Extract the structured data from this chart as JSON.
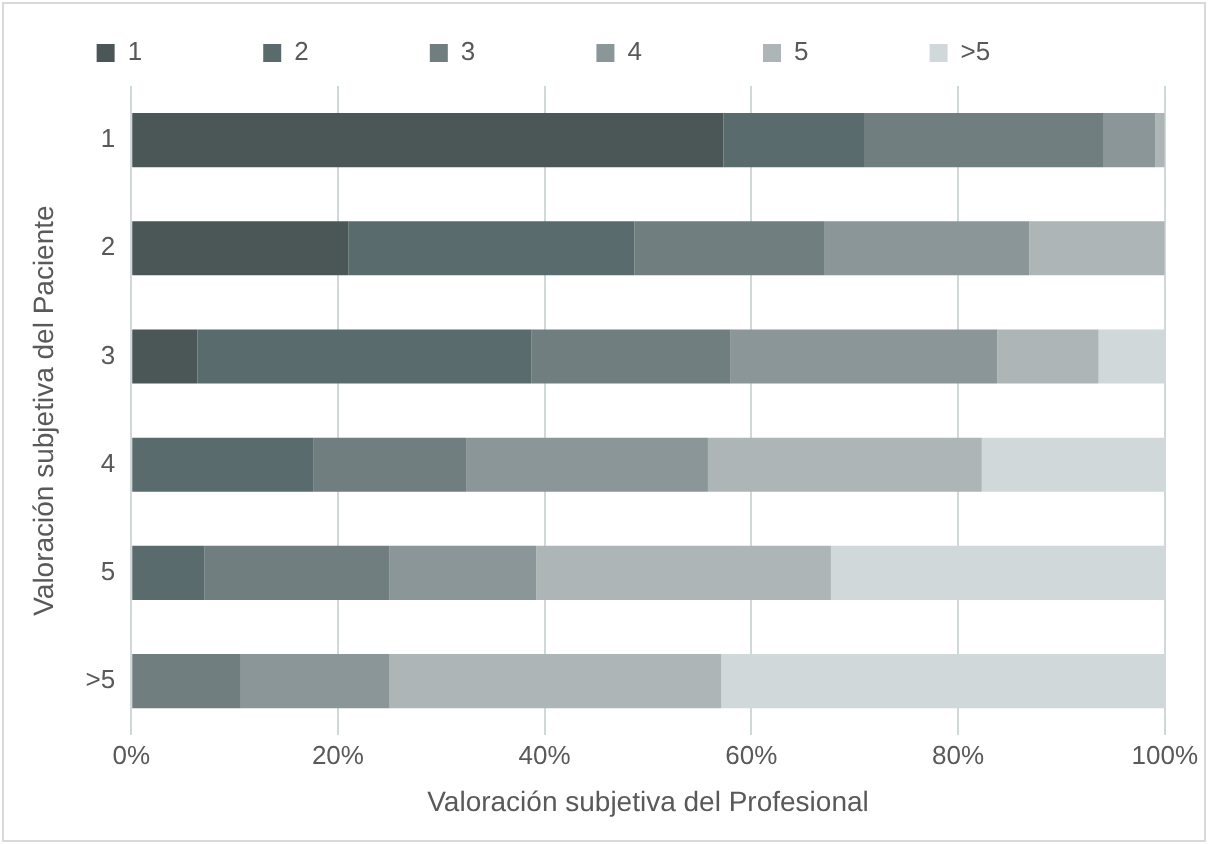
{
  "chart_data": {
    "type": "bar",
    "orientation": "horizontal",
    "stacked": true,
    "xlabel": "Valoración subjetiva del Profesional",
    "ylabel": "Valoración subjetiva del Paciente",
    "categories": [
      "1",
      "2",
      "3",
      "4",
      "5",
      ">5"
    ],
    "series": [
      {
        "name": "1",
        "color": "#4b5757",
        "values": [
          57.3,
          21.0,
          6.4,
          0,
          0,
          0
        ]
      },
      {
        "name": "2",
        "color": "#5a6b6d",
        "values": [
          13.6,
          27.7,
          32.3,
          17.6,
          7.1,
          0
        ]
      },
      {
        "name": "3",
        "color": "#717e80",
        "values": [
          23.2,
          18.4,
          19.3,
          14.8,
          17.9,
          10.6
        ]
      },
      {
        "name": "4",
        "color": "#8a9698",
        "values": [
          5.0,
          19.8,
          25.8,
          23.4,
          14.2,
          14.4
        ]
      },
      {
        "name": "5",
        "color": "#adb5b6",
        "values": [
          0.9,
          13.1,
          9.8,
          26.5,
          28.5,
          32.1
        ]
      },
      {
        "name": ">5",
        "color": "#d0d8da",
        "values": [
          0,
          0,
          6.4,
          17.7,
          32.3,
          42.9
        ]
      }
    ],
    "xlim": [
      0,
      100
    ],
    "xticks": [
      {
        "value": 0,
        "label": "0%"
      },
      {
        "value": 20,
        "label": "20%"
      },
      {
        "value": 40,
        "label": "40%"
      },
      {
        "value": 60,
        "label": "60%"
      },
      {
        "value": 80,
        "label": "80%"
      },
      {
        "value": 100,
        "label": "100%"
      }
    ],
    "grid": "x",
    "legend": "top"
  }
}
